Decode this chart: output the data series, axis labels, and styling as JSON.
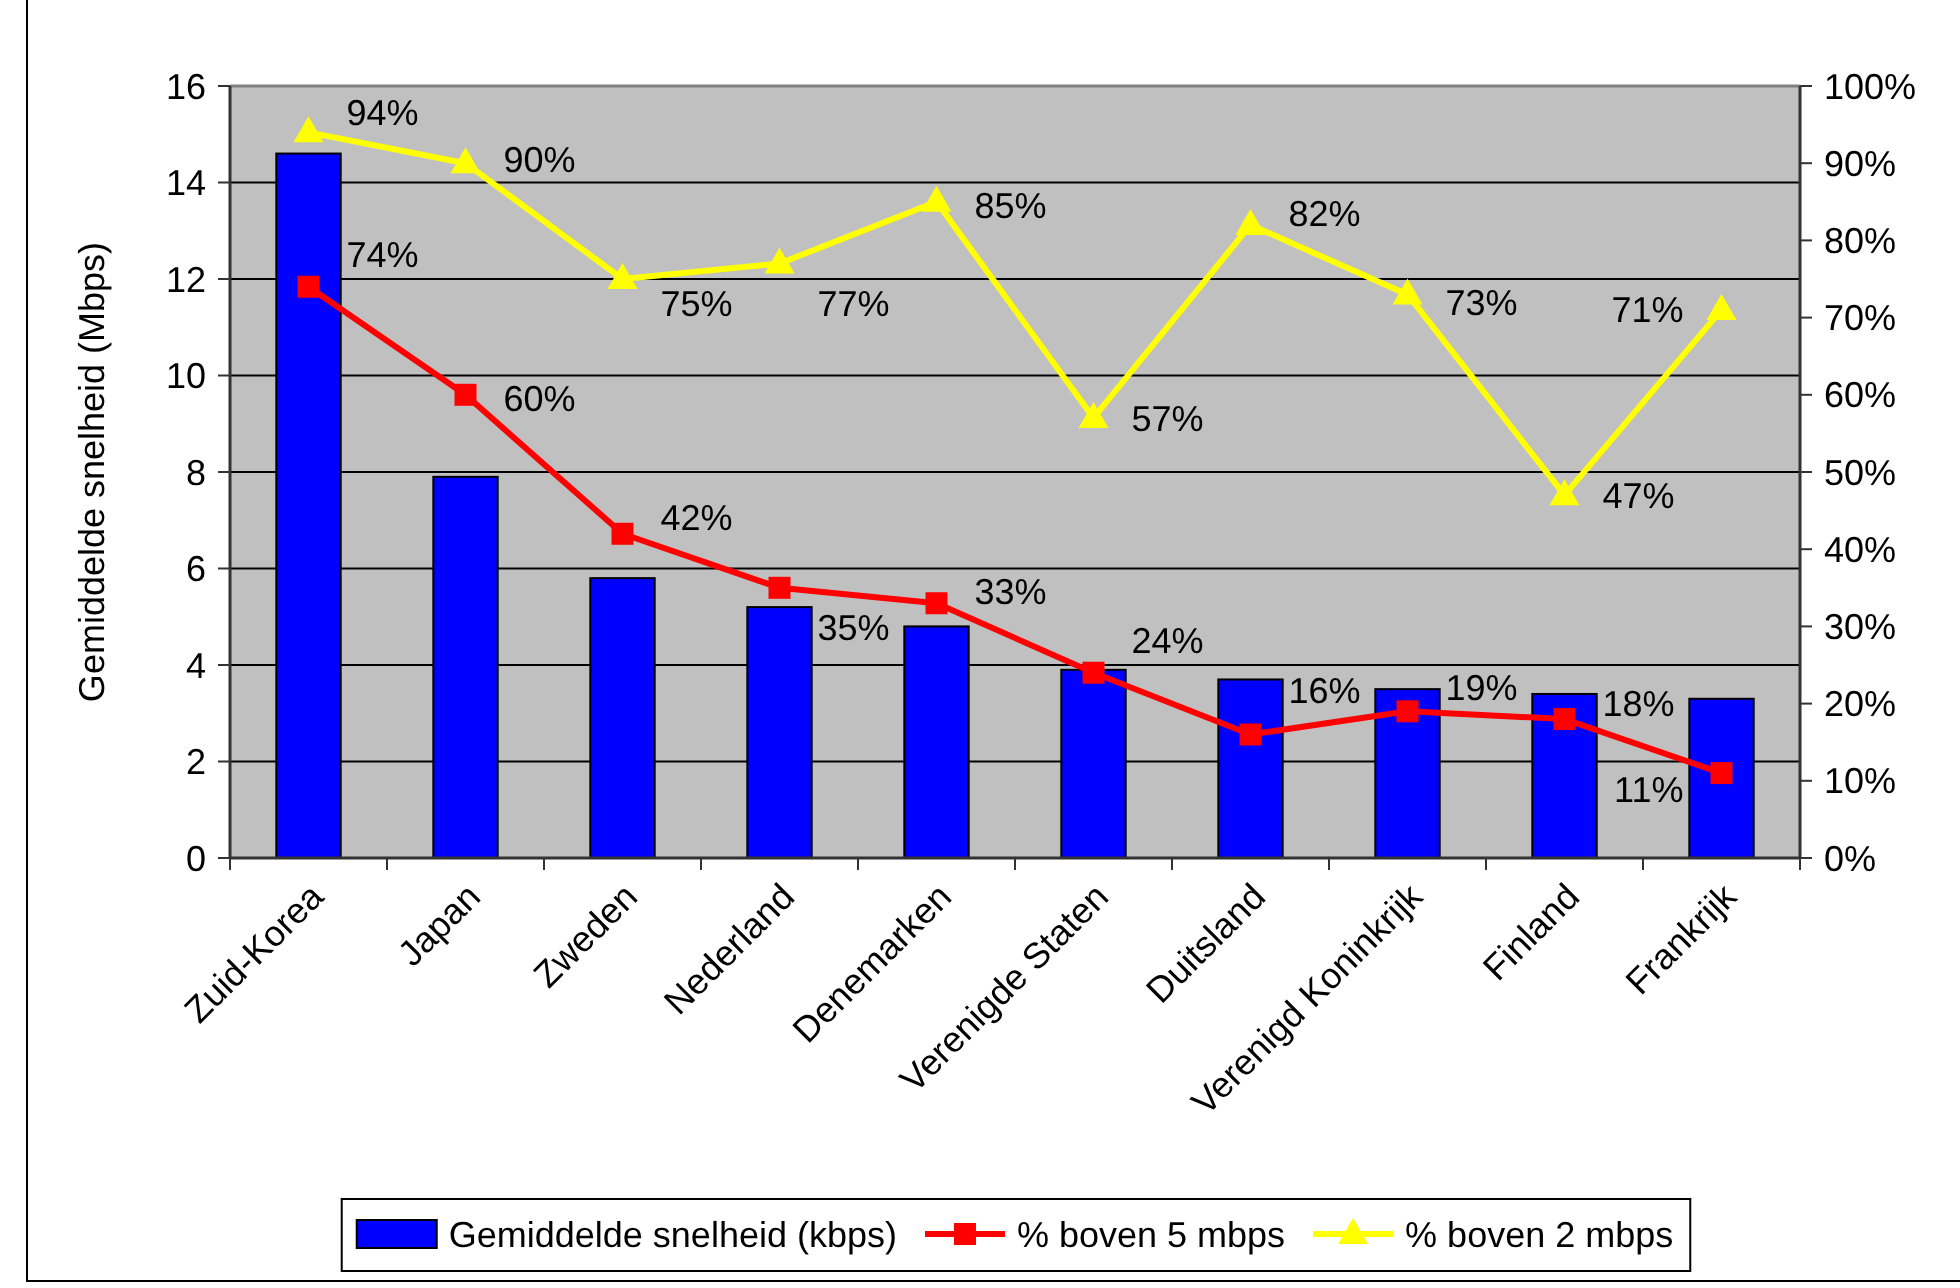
{
  "chart_data": {
    "type": "bar",
    "categories": [
      "Zuid-Korea",
      "Japan",
      "Zweden",
      "Nederland",
      "Denemarken",
      "Verenigde Staten",
      "Duitsland",
      "Verenigd Koninkrijk",
      "Finland",
      "Frankrijk"
    ],
    "series": [
      {
        "name": "Gemiddelde snelheid (kbps)",
        "color": "#0000ff",
        "values": [
          14.6,
          7.9,
          5.8,
          5.2,
          4.8,
          3.9,
          3.7,
          3.5,
          3.4,
          3.3
        ]
      },
      {
        "name": "% boven 5 mbps",
        "type": "line",
        "axis": "y2",
        "color": "#ff0000",
        "marker": "square",
        "values": [
          74,
          60,
          42,
          35,
          33,
          24,
          16,
          19,
          18,
          11
        ],
        "value_labels": [
          "74%",
          "60%",
          "42%",
          "35%",
          "33%",
          "24%",
          "16%",
          "19%",
          "18%",
          "11%"
        ]
      },
      {
        "name": "% boven 2 mbps",
        "type": "line",
        "axis": "y2",
        "color": "#ffff00",
        "marker": "triangle",
        "values": [
          94,
          90,
          75,
          77,
          85,
          57,
          82,
          73,
          47,
          71
        ],
        "value_labels": [
          "94%",
          "90%",
          "75%",
          "77%",
          "85%",
          "57%",
          "82%",
          "73%",
          "47%",
          "71%"
        ]
      }
    ],
    "ylabel": "Gemiddelde snelheid (Mbps)",
    "ylim": [
      0,
      16
    ],
    "yticks": [
      0,
      2,
      4,
      6,
      8,
      10,
      12,
      14,
      16
    ],
    "y2lim": [
      0,
      100
    ],
    "y2ticks": [
      {
        "value": 0,
        "label": "0%"
      },
      {
        "value": 10,
        "label": "10%"
      },
      {
        "value": 20,
        "label": "20%"
      },
      {
        "value": 30,
        "label": "30%"
      },
      {
        "value": 40,
        "label": "40%"
      },
      {
        "value": 50,
        "label": "50%"
      },
      {
        "value": 60,
        "label": "60%"
      },
      {
        "value": 70,
        "label": "70%"
      },
      {
        "value": 80,
        "label": "80%"
      },
      {
        "value": 90,
        "label": "90%"
      },
      {
        "value": 100,
        "label": "100%"
      }
    ],
    "grid": "y",
    "legend": "bottom"
  }
}
